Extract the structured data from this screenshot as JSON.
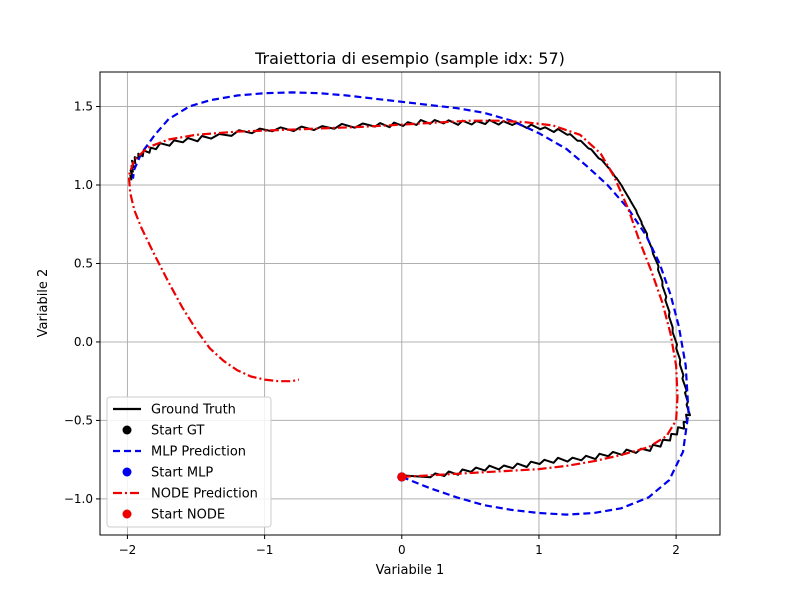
{
  "chart_data": {
    "type": "line",
    "title": "Traiettoria di esempio (sample idx: 57)",
    "xlabel": "Variabile 1",
    "ylabel": "Variabile 2",
    "xlim": [
      -2.2,
      2.32
    ],
    "ylim": [
      -1.23,
      1.72
    ],
    "xticks": [
      -2,
      -1,
      0,
      1,
      2
    ],
    "yticks": [
      -1.0,
      -0.5,
      0.0,
      0.5,
      1.0,
      1.5
    ],
    "xtick_labels": [
      "−2",
      "−1",
      "0",
      "1",
      "2"
    ],
    "ytick_labels": [
      "−1.0",
      "−0.5",
      "0.0",
      "0.5",
      "1.0",
      "1.5"
    ],
    "grid": true,
    "legend_position": "lower-left",
    "series": [
      {
        "name": "Ground Truth",
        "style": "solid",
        "color": "#000000",
        "noisy": true,
        "x": [
          0.0,
          0.2,
          0.4,
          0.6,
          0.8,
          1.0,
          1.2,
          1.4,
          1.6,
          1.8,
          1.95,
          2.05,
          2.09,
          2.07,
          2.02,
          1.97,
          1.92,
          1.86,
          1.78,
          1.7,
          1.6,
          1.5,
          1.35,
          1.2,
          1.0,
          0.8,
          0.6,
          0.4,
          0.2,
          0.0,
          -0.2,
          -0.5,
          -0.8,
          -1.1,
          -1.4,
          -1.6,
          -1.8,
          -1.9,
          -1.95,
          -1.97,
          -1.97
        ],
        "y": [
          -0.85,
          -0.85,
          -0.83,
          -0.81,
          -0.79,
          -0.77,
          -0.75,
          -0.73,
          -0.71,
          -0.68,
          -0.62,
          -0.54,
          -0.45,
          -0.3,
          -0.1,
          0.1,
          0.3,
          0.5,
          0.7,
          0.85,
          1.0,
          1.12,
          1.25,
          1.33,
          1.37,
          1.39,
          1.4,
          1.4,
          1.4,
          1.39,
          1.38,
          1.37,
          1.36,
          1.34,
          1.31,
          1.28,
          1.24,
          1.2,
          1.15,
          1.1,
          1.03
        ]
      },
      {
        "name": "MLP Prediction",
        "style": "dashed",
        "color": "#0000ee",
        "x": [
          0.0,
          0.2,
          0.4,
          0.6,
          0.8,
          1.0,
          1.2,
          1.4,
          1.6,
          1.8,
          1.95,
          2.05,
          2.09,
          2.07,
          2.02,
          1.96,
          1.88,
          1.78,
          1.65,
          1.5,
          1.35,
          1.2,
          1.0,
          0.8,
          0.6,
          0.4,
          0.2,
          0.0,
          -0.2,
          -0.4,
          -0.6,
          -0.8,
          -1.0,
          -1.2,
          -1.4,
          -1.55,
          -1.7,
          -1.8,
          -1.9,
          -1.95,
          -1.96
        ],
        "y": [
          -0.86,
          -0.93,
          -0.99,
          -1.04,
          -1.07,
          -1.09,
          -1.1,
          -1.09,
          -1.06,
          -0.99,
          -0.88,
          -0.7,
          -0.45,
          -0.15,
          0.1,
          0.3,
          0.5,
          0.68,
          0.85,
          1.0,
          1.12,
          1.23,
          1.33,
          1.41,
          1.46,
          1.49,
          1.51,
          1.53,
          1.55,
          1.57,
          1.585,
          1.59,
          1.585,
          1.57,
          1.54,
          1.5,
          1.42,
          1.32,
          1.2,
          1.1,
          1.04
        ]
      },
      {
        "name": "NODE Prediction",
        "style": "dashdot",
        "color": "#ee0000",
        "x": [
          0.0,
          0.2,
          0.4,
          0.6,
          0.8,
          1.0,
          1.2,
          1.4,
          1.6,
          1.8,
          1.93,
          2.0,
          2.01,
          2.0,
          1.96,
          1.9,
          1.82,
          1.73,
          1.65,
          1.55,
          1.45,
          1.3,
          1.1,
          0.9,
          0.7,
          0.5,
          0.3,
          0.1,
          -0.1,
          -0.3,
          -0.6,
          -0.9,
          -1.2,
          -1.5,
          -1.7,
          -1.85,
          -1.95,
          -1.99,
          -1.98,
          -1.95,
          -1.9,
          -1.8,
          -1.7,
          -1.6,
          -1.5,
          -1.4,
          -1.3,
          -1.2,
          -1.1,
          -1.0,
          -0.9,
          -0.8,
          -0.75
        ],
        "y": [
          -0.86,
          -0.85,
          -0.84,
          -0.83,
          -0.82,
          -0.81,
          -0.79,
          -0.76,
          -0.72,
          -0.67,
          -0.6,
          -0.5,
          -0.35,
          -0.15,
          0.05,
          0.25,
          0.45,
          0.65,
          0.85,
          1.05,
          1.2,
          1.32,
          1.38,
          1.4,
          1.41,
          1.41,
          1.4,
          1.39,
          1.38,
          1.37,
          1.36,
          1.35,
          1.34,
          1.32,
          1.29,
          1.24,
          1.16,
          1.06,
          0.95,
          0.84,
          0.73,
          0.55,
          0.38,
          0.22,
          0.08,
          -0.04,
          -0.12,
          -0.18,
          -0.22,
          -0.24,
          -0.25,
          -0.25,
          -0.24
        ]
      }
    ],
    "points": [
      {
        "name": "Start GT",
        "color": "#000000",
        "x": 0.0,
        "y": -0.86
      },
      {
        "name": "Start MLP",
        "color": "#0000ee",
        "x": 0.0,
        "y": -0.86
      },
      {
        "name": "Start NODE",
        "color": "#ee0000",
        "x": 0.0,
        "y": -0.86
      }
    ]
  }
}
